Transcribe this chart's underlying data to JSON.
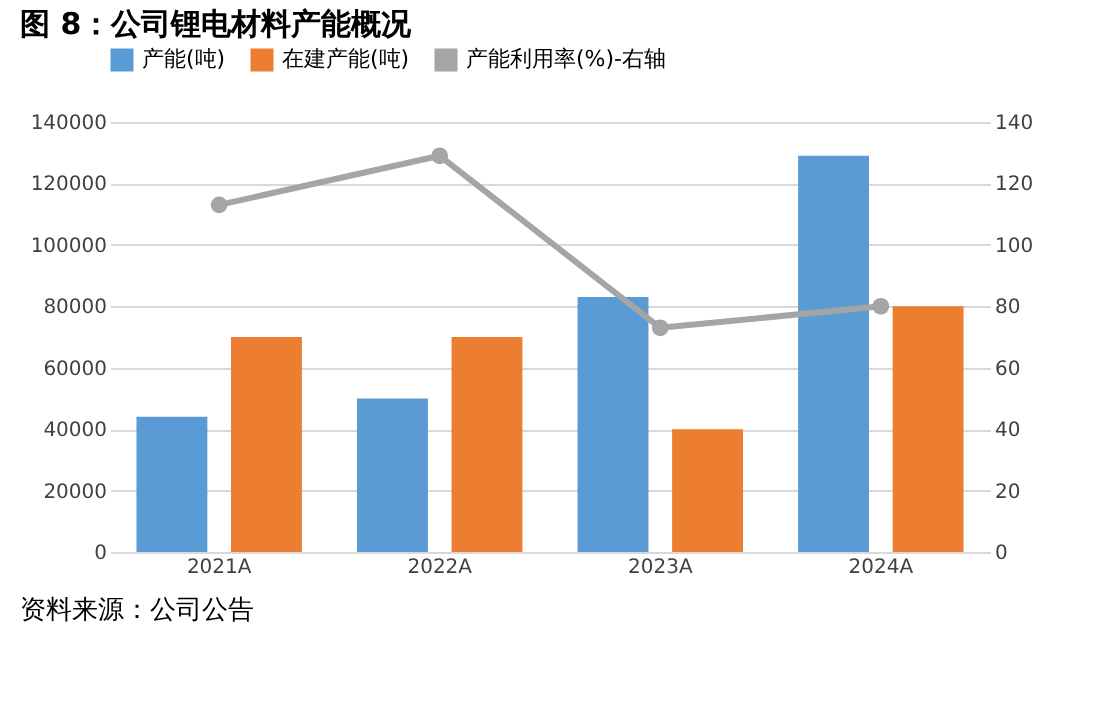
{
  "chart_data": {
    "type": "bar",
    "title": "图 8：公司锂电材料产能概况",
    "categories": [
      "2021A",
      "2022A",
      "2023A",
      "2024A"
    ],
    "series": [
      {
        "name": "产能(吨)",
        "color": "#5b9bd5",
        "values": [
          44000,
          50000,
          83000,
          129000
        ]
      },
      {
        "name": "在建产能(吨)",
        "color": "#ed7d31",
        "values": [
          70000,
          70000,
          40000,
          80000
        ]
      },
      {
        "name": "产能利用率(%)-右轴",
        "type": "line",
        "axis": "y2",
        "color": "#a5a5a5",
        "marker": "circle",
        "line_style": "solid",
        "values": [
          113,
          129,
          73,
          80
        ]
      }
    ],
    "ylim": [
      0,
      140000
    ],
    "yticks": [
      0,
      20000,
      40000,
      60000,
      80000,
      100000,
      120000,
      140000
    ],
    "y2lim": [
      0,
      140
    ],
    "y2ticks": [
      0,
      20,
      40,
      60,
      80,
      100,
      120,
      140
    ],
    "grid": "y",
    "legend": "top",
    "annotations": [
      "资料来源：公司公告"
    ]
  }
}
